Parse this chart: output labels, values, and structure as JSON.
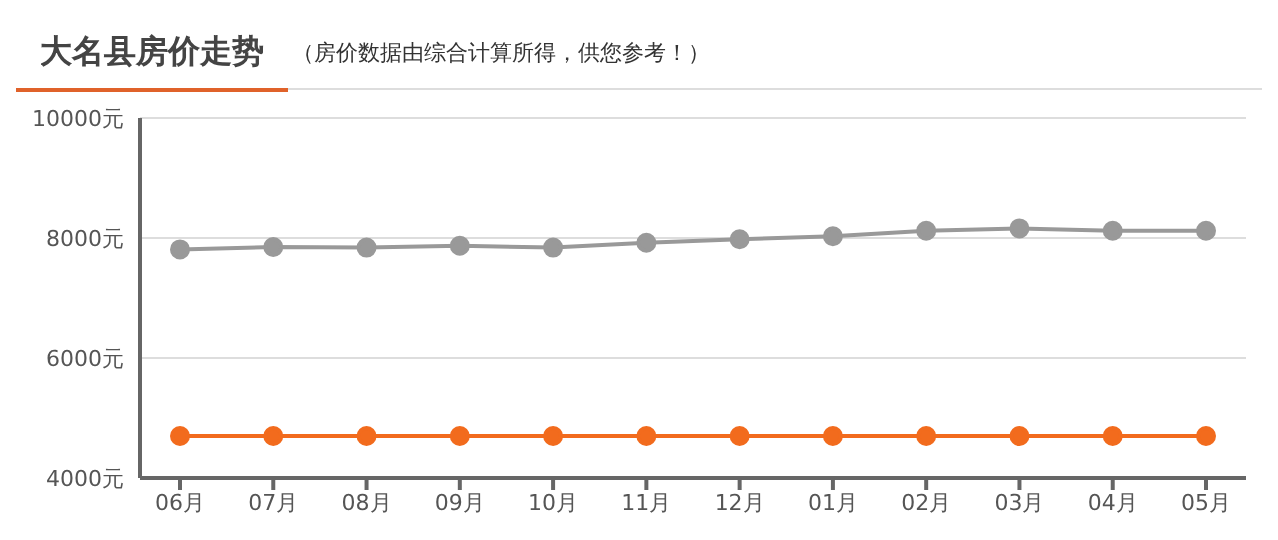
{
  "chart_data": {
    "type": "line",
    "title": "大名县房价走势",
    "subtitle": "（房价数据由综合计算所得，供您参考！）",
    "categories": [
      "06月",
      "07月",
      "08月",
      "09月",
      "10月",
      "11月",
      "12月",
      "01月",
      "02月",
      "03月",
      "04月",
      "05月"
    ],
    "series": [
      {
        "color": "#999999",
        "values": [
          7810,
          7850,
          7840,
          7870,
          7840,
          7920,
          7980,
          8030,
          8120,
          8160,
          8120,
          8120
        ]
      },
      {
        "color": "#f26b1d",
        "values": [
          4700,
          4700,
          4700,
          4700,
          4700,
          4700,
          4700,
          4700,
          4700,
          4700,
          4700,
          4700
        ]
      }
    ],
    "ylim": [
      4000,
      10000
    ],
    "yticks": [
      {
        "value": 4000,
        "label": "4000元"
      },
      {
        "value": 6000,
        "label": "6000元"
      },
      {
        "value": 8000,
        "label": "8000元"
      },
      {
        "value": 10000,
        "label": "10000元"
      }
    ],
    "grid": "y",
    "marker": "circle",
    "line_style": "solid",
    "legend": false
  }
}
